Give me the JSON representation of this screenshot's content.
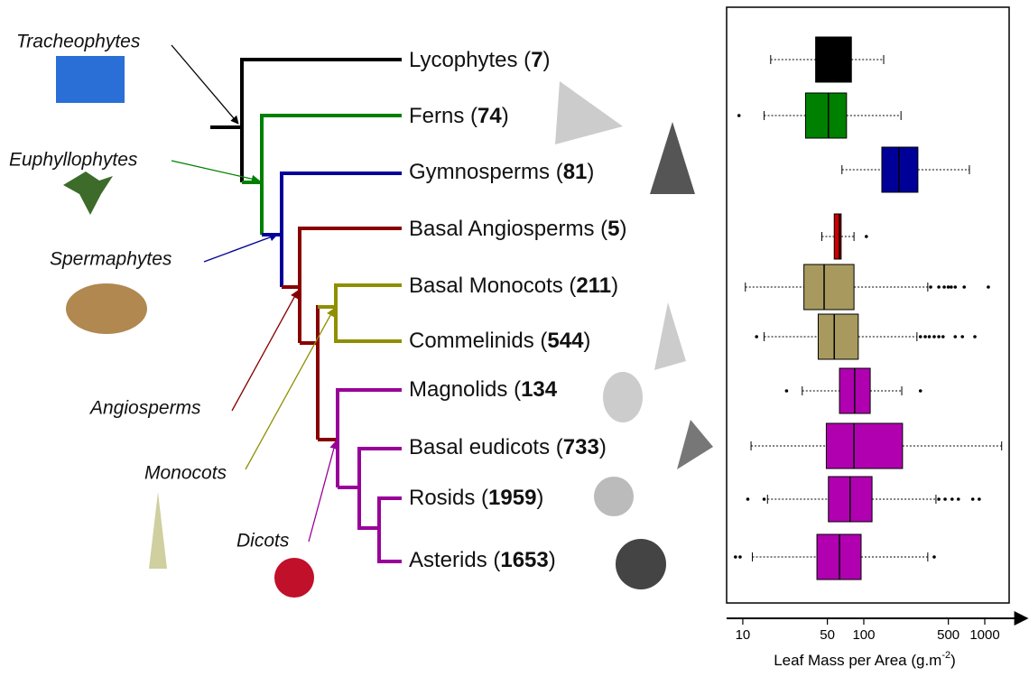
{
  "clades": [
    {
      "label": "Tracheophytes"
    },
    {
      "label": "Euphyllophytes"
    },
    {
      "label": "Spermaphytes"
    },
    {
      "label": "Angiosperms"
    },
    {
      "label": "Monocots"
    },
    {
      "label": "Dicots"
    }
  ],
  "taxa": [
    {
      "prefix": "Lycophytes (",
      "count": 7,
      "suffix": ")"
    },
    {
      "prefix": "Ferns (",
      "count": 74,
      "suffix": ")"
    },
    {
      "prefix": "Gymnosperms (",
      "count": 81,
      "suffix": ")"
    },
    {
      "prefix": "Basal Angiosperms (",
      "count": 5,
      "suffix": ")"
    },
    {
      "prefix": "Basal Monocots (",
      "count": 211,
      "suffix": ")"
    },
    {
      "prefix": "Commelinids (",
      "count": 544,
      "suffix": ")"
    },
    {
      "prefix": "Magnolids (",
      "count": 134
    },
    {
      "prefix": "Basal eudicots (",
      "count": 733,
      "suffix": ")"
    },
    {
      "prefix": "Rosids (",
      "count": 1959,
      "suffix": ")"
    },
    {
      "prefix": "Asterids (",
      "count": 1653,
      "suffix": ")"
    }
  ],
  "chart_data": {
    "type": "boxplot",
    "x_label": "Leaf Mass per Area (g.m",
    "x_label_sup": "-2",
    "x_label_end": ")",
    "xscale": "log",
    "xlim": [
      7.35,
      1590
    ],
    "xticks": [
      10,
      50,
      100,
      500,
      1000
    ],
    "boxes": [
      {
        "color": "#000000",
        "line": "#000000",
        "whislo": 17,
        "q1": 40,
        "med": 60,
        "q3": 79,
        "whishi": 146,
        "fliers": []
      },
      {
        "color": "#008000",
        "line": "#000000",
        "whislo": 15,
        "q1": 33,
        "med": 51,
        "q3": 72,
        "whishi": 203,
        "fliers": [
          9.3
        ]
      },
      {
        "color": "#000099",
        "line": "#000000",
        "whislo": 66,
        "q1": 141,
        "med": 195,
        "q3": 280,
        "whishi": 746,
        "fliers": []
      },
      {
        "color": "#cc0000",
        "line": "#000000",
        "whislo": 45,
        "q1": 57,
        "med": 63,
        "q3": 65,
        "whishi": 83,
        "fliers": [
          105
        ]
      },
      {
        "color": "#a89a5e",
        "line": "#000000",
        "whislo": 10.5,
        "q1": 32,
        "med": 47,
        "q3": 83,
        "whishi": 338,
        "fliers": [
          357,
          417,
          462,
          499,
          528,
          570,
          676,
          1070
        ]
      },
      {
        "color": "#a89a5e",
        "line": "#000000",
        "whislo": 15,
        "q1": 42,
        "med": 57,
        "q3": 90,
        "whishi": 275,
        "fliers": [
          13,
          294,
          322,
          348,
          382,
          417,
          452,
          570,
          653,
          828
        ]
      },
      {
        "color": "#b000b0",
        "line": "#000000",
        "whislo": 31,
        "q1": 63,
        "med": 84,
        "q3": 113,
        "whishi": 206,
        "fliers": [
          23,
          294
        ]
      },
      {
        "color": "#b000b0",
        "line": "#000000",
        "whislo": 11.7,
        "q1": 49,
        "med": 83,
        "q3": 209,
        "whishi": 1379,
        "fliers": []
      },
      {
        "color": "#b000b0",
        "line": "#000000",
        "whislo": 16,
        "q1": 51,
        "med": 77,
        "q3": 117,
        "whishi": 395,
        "fliers": [
          11,
          15,
          417,
          470,
          537,
          605,
          796,
          900
        ]
      },
      {
        "color": "#b000b0",
        "line": "#000000",
        "whislo": 12,
        "q1": 41,
        "med": 63,
        "q3": 95,
        "whishi": 338,
        "fliers": [
          8.7,
          9.5,
          382
        ]
      }
    ]
  }
}
